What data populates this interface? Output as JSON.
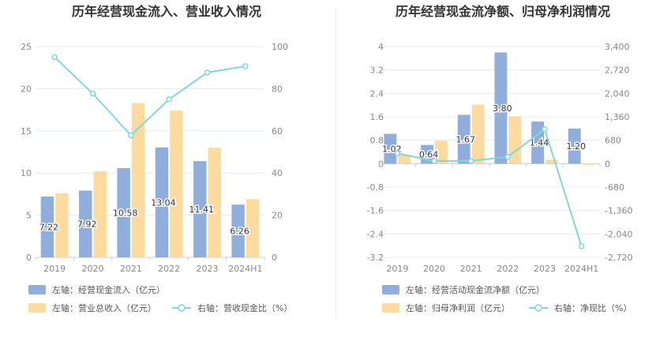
{
  "colors": {
    "bar_blue": "#8FAEDC",
    "bar_orange": "#FDDB9F",
    "line_teal": "#84D6DC",
    "grid": "#E7EBF2",
    "axis": "#C9CDD4",
    "text": "#888888",
    "title": "#333333"
  },
  "chart_data": [
    {
      "type": "bar",
      "title": "历年经营现金流入、营业收入情况",
      "categories": [
        "2019",
        "2020",
        "2021",
        "2022",
        "2023",
        "2024H1"
      ],
      "series": [
        {
          "name": "左轴：经营现金流入（亿元）",
          "axis": "left",
          "kind": "bar",
          "values": [
            7.22,
            7.92,
            10.58,
            13.04,
            11.41,
            6.26
          ]
        },
        {
          "name": "左轴：营业总收入（亿元）",
          "axis": "left",
          "kind": "bar",
          "values": [
            7.6,
            10.2,
            18.3,
            17.4,
            13.0,
            6.9
          ]
        },
        {
          "name": "右轴：营收现金比（%）",
          "axis": "right",
          "kind": "line",
          "values": [
            95,
            77.7,
            57.9,
            75.0,
            87.7,
            90.7
          ]
        }
      ],
      "data_labels": [
        "7.22",
        "7.92",
        "10.58",
        "13.04",
        "11.41",
        "6.26"
      ],
      "y_left": {
        "ticks": [
          "0",
          "5",
          "10",
          "15",
          "20",
          "25"
        ],
        "ylim": [
          0,
          25
        ]
      },
      "y_right": {
        "ticks": [
          "0",
          "20",
          "40",
          "60",
          "80",
          "100"
        ],
        "ylim": [
          0,
          100
        ]
      },
      "grid": true,
      "legend_placement": "bottom-left"
    },
    {
      "type": "bar",
      "title": "历年经营现金流净额、归母净利润情况",
      "categories": [
        "2019",
        "2020",
        "2021",
        "2022",
        "2023",
        "2024H1"
      ],
      "series": [
        {
          "name": "左轴：经营活动现金流净额（亿元）",
          "axis": "left",
          "kind": "bar",
          "values": [
            1.02,
            0.64,
            1.67,
            3.8,
            1.44,
            1.2
          ]
        },
        {
          "name": "左轴：归母净利润（亿元）",
          "axis": "left",
          "kind": "bar",
          "values": [
            0.3,
            0.78,
            2.02,
            1.62,
            0.13,
            -0.04
          ]
        },
        {
          "name": "右轴：净现比（%）",
          "axis": "right",
          "kind": "line",
          "values": [
            300,
            80,
            80,
            200,
            1000,
            -2400
          ]
        }
      ],
      "data_labels": [
        "1.02",
        "0.64",
        "1.67",
        "3.80",
        "1.44",
        "1.20"
      ],
      "y_left": {
        "ticks": [
          "4",
          "3.2",
          "2.4",
          "1.6",
          "0.8",
          "0",
          "-0.8",
          "-1.6",
          "-2.4",
          "-3.2"
        ],
        "ylim": [
          -3.2,
          4
        ]
      },
      "y_right": {
        "ticks": [
          "3,400",
          "2,720",
          "2,040",
          "1,360",
          "680",
          "0",
          "-680",
          "-1,360",
          "-2,040",
          "-2,720"
        ],
        "ylim": [
          -2720,
          3400
        ]
      },
      "grid": true,
      "legend_placement": "bottom-left"
    }
  ]
}
